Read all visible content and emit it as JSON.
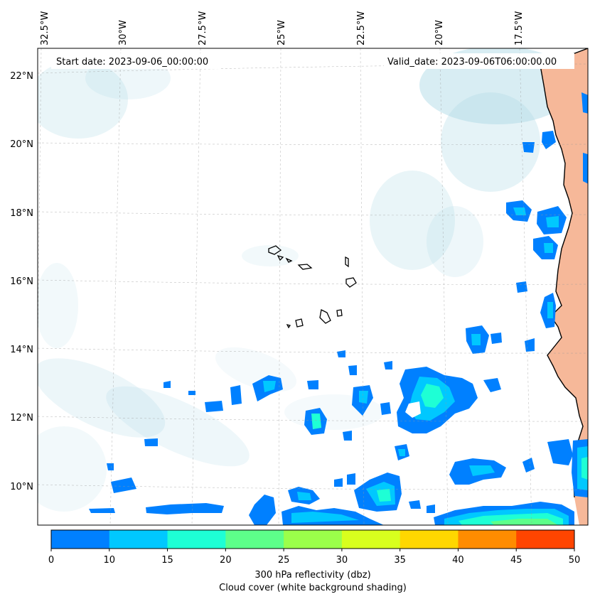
{
  "map": {
    "start_date": "Start date: 2023-09-06_00:00:00",
    "valid_date": "Valid_date: 2023-09-06T06:00:00.00",
    "lon_labels": [
      "32.5°W",
      "30°W",
      "27.5°W",
      "25°W",
      "22.5°W",
      "20°W",
      "17.5°W"
    ],
    "lat_labels": [
      "22°N",
      "20°N",
      "18°N",
      "16°N",
      "14°N",
      "12°N",
      "10°N"
    ],
    "land_color": "#f6b899",
    "cloud_color": "#a9d7e4"
  },
  "colorbar": {
    "ticks": [
      "0",
      "10",
      "15",
      "20",
      "25",
      "30",
      "35",
      "40",
      "45",
      "50"
    ],
    "colors": [
      "#0080ff",
      "#00c8ff",
      "#1effd5",
      "#5dff8a",
      "#9bff4a",
      "#d8ff1e",
      "#ffd700",
      "#ff8c00",
      "#ff4500"
    ],
    "label_line1": "300 hPa reflectivity (dbz)",
    "label_line2": "Cloud cover (white background shading)"
  }
}
